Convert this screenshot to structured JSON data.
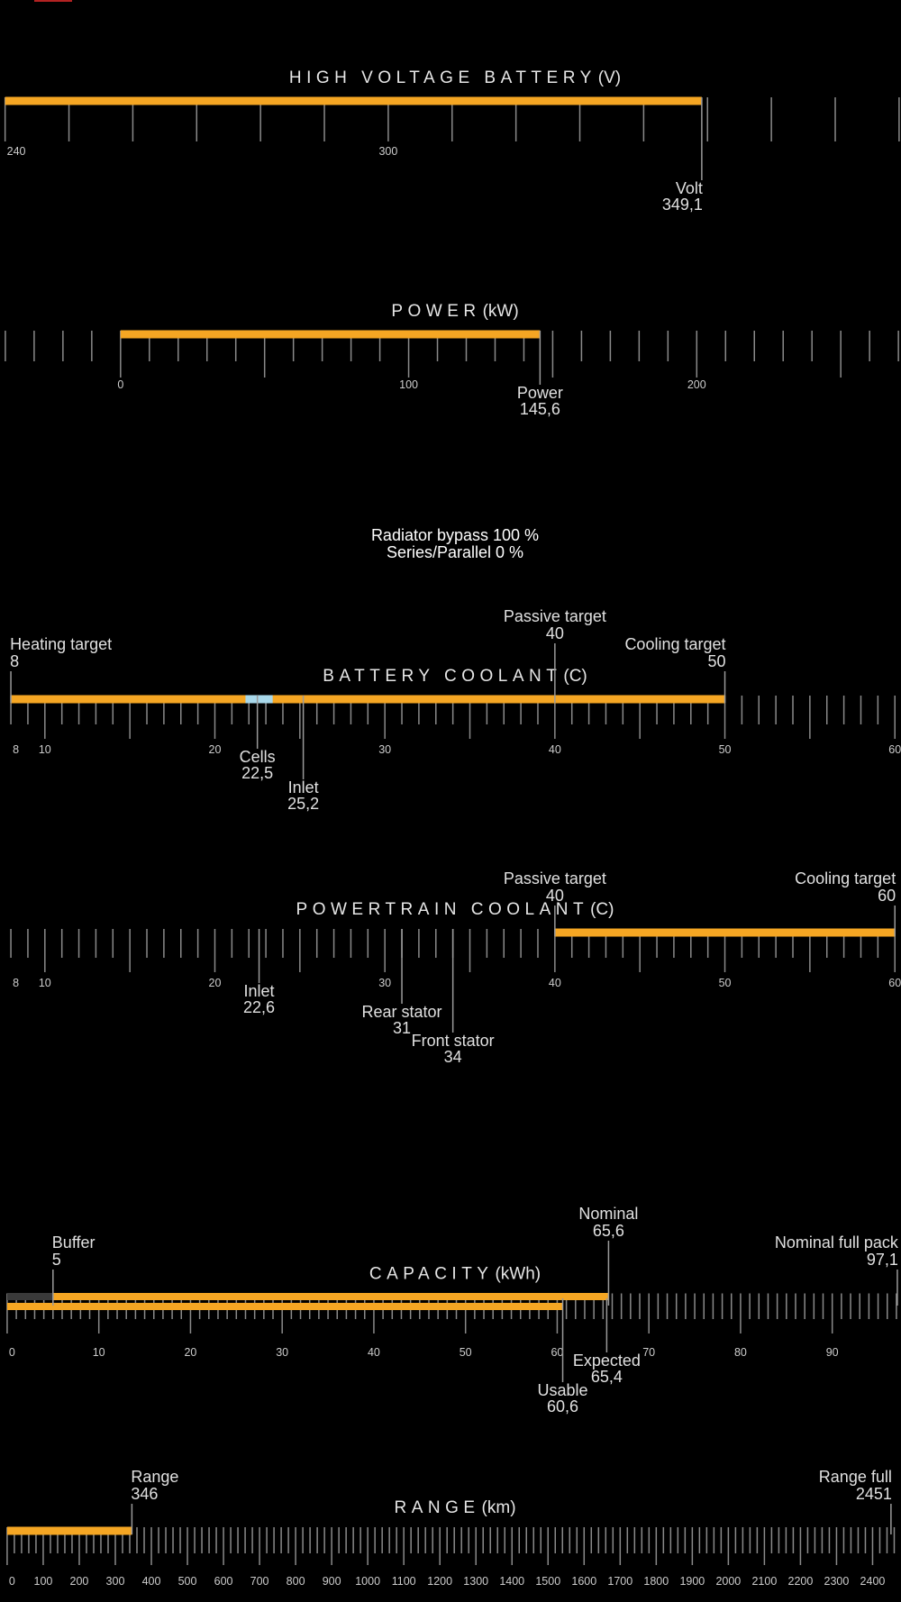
{
  "gauges": [
    {
      "title": "HIGH VOLTAGE BATTERY",
      "unit": "(V)",
      "xlim": [
        239.2,
        380.3
      ],
      "minor_step": 10,
      "major_step": 50,
      "tick_labels": [
        240,
        300
      ],
      "bar_rows": [
        [
          {
            "from": 240,
            "to": 349.1,
            "color": "#f5a623"
          }
        ]
      ],
      "markers": [
        {
          "name": "Volt",
          "value": 349.1,
          "value_label": "349,1"
        }
      ]
    },
    {
      "title": "POWER",
      "unit": "(kW)",
      "xlim": [
        -41.85,
        270.9
      ],
      "minor_step": 10,
      "major_step": 50,
      "tick_labels": [
        0,
        100,
        200
      ],
      "bar_rows": [
        [
          {
            "from": 0,
            "to": 145.6,
            "color": "#f5a623"
          }
        ]
      ],
      "markers": [
        {
          "name": "Power",
          "value": 145.6,
          "value_label": "145,6"
        }
      ]
    },
    {
      "title": "BATTERY COOLANT",
      "unit": "(C)",
      "xlim": [
        7.36,
        60.36
      ],
      "minor_step": 1,
      "major_step": 5,
      "tick_labels": [
        8,
        10,
        20,
        30,
        40,
        50,
        60
      ],
      "bar_rows": [
        [
          {
            "from": 8,
            "to": 50,
            "color": "#f5a623"
          },
          {
            "from": 21.8,
            "to": 23.4,
            "color": "#a8d8ea"
          }
        ]
      ],
      "markers": [
        {
          "name": "Heating target",
          "value": 8
        },
        {
          "name": "Cooling target",
          "value": 50
        },
        {
          "name": "Passive target",
          "value": 40
        },
        {
          "name": "Cells",
          "value": 22.5,
          "value_label": "22,5"
        },
        {
          "name": "Inlet",
          "value": 25.2,
          "value_label": "25,2"
        }
      ]
    },
    {
      "title": "POWERTRAIN COOLANT",
      "unit": "(C)",
      "xlim": [
        7.36,
        60.36
      ],
      "minor_step": 1,
      "major_step": 5,
      "tick_labels": [
        8,
        10,
        20,
        30,
        40,
        50,
        60
      ],
      "bar_rows": [
        [
          {
            "from": 40,
            "to": 60,
            "color": "#f5a623"
          }
        ]
      ],
      "markers": [
        {
          "name": "Passive target",
          "value": 40
        },
        {
          "name": "Cooling target",
          "value": 60
        },
        {
          "name": "Inlet",
          "value": 22.6,
          "value_label": "22,6"
        },
        {
          "name": "Rear stator",
          "value": 31
        },
        {
          "name": "Front stator",
          "value": 34
        }
      ]
    },
    {
      "title": "CAPACITY",
      "unit": "(kWh)",
      "xlim": [
        -0.78,
        97.5
      ],
      "minor_step": 1,
      "major_step": 10,
      "tick_labels": [
        0,
        10,
        20,
        30,
        40,
        50,
        60,
        70,
        80,
        90
      ],
      "bar_rows": [
        [
          {
            "from": 0,
            "to": 5,
            "color": "#3a3a3a"
          },
          {
            "from": 5,
            "to": 65.6,
            "color": "#f5a623"
          }
        ],
        [
          {
            "from": 0,
            "to": 60.6,
            "color": "#f5a623"
          }
        ]
      ],
      "markers": [
        {
          "name": "Buffer",
          "value": 5
        },
        {
          "name": "Nominal",
          "value": 65.6,
          "value_label": "65,6"
        },
        {
          "name": "Nominal full pack",
          "value": 97.1,
          "value_label": "97,1"
        },
        {
          "name": "Expected",
          "value": 65.4,
          "value_label": "65,4"
        },
        {
          "name": "Usable",
          "value": 60.6,
          "value_label": "60,6"
        }
      ]
    },
    {
      "title": "RANGE",
      "unit": "(km)",
      "xlim": [
        -19.8,
        2478.8
      ],
      "minor_step": 20,
      "major_step": 100,
      "tick_labels": [
        0,
        100,
        200,
        300,
        400,
        500,
        600,
        700,
        800,
        900,
        1000,
        1100,
        1200,
        1300,
        1400,
        1500,
        1600,
        1700,
        1800,
        1900,
        2000,
        2100,
        2200,
        2300,
        2400
      ],
      "bar_rows": [
        [
          {
            "from": 0,
            "to": 346,
            "color": "#f5a623"
          }
        ]
      ],
      "markers": [
        {
          "name": "Range",
          "value": 346
        },
        {
          "name": "Range full",
          "value": 2451
        }
      ]
    }
  ],
  "status": [
    "Radiator bypass 100 %",
    "Series/Parallel 0 %"
  ]
}
